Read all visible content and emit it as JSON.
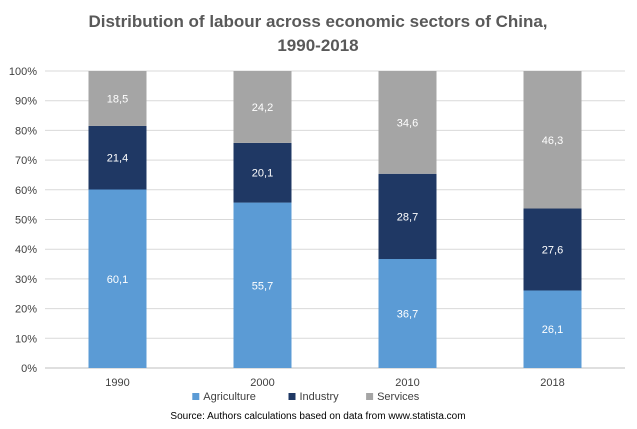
{
  "chart_data": {
    "type": "bar",
    "stacked": true,
    "title_line1": "Distribution of labour across economic sectors of China,",
    "title_line2": "1990-2018",
    "categories": [
      "1990",
      "2000",
      "2010",
      "2018"
    ],
    "series": [
      {
        "name": "Agriculture",
        "color": "#5b9bd5",
        "values": [
          60.1,
          55.7,
          36.7,
          26.1
        ],
        "labels": [
          "60,1",
          "55,7",
          "36,7",
          "26,1"
        ]
      },
      {
        "name": "Industry",
        "color": "#1f3864",
        "values": [
          21.4,
          20.1,
          28.7,
          27.6
        ],
        "labels": [
          "21,4",
          "20,1",
          "28,7",
          "27,6"
        ]
      },
      {
        "name": "Services",
        "color": "#a5a5a5",
        "values": [
          18.5,
          24.2,
          34.6,
          46.3
        ],
        "labels": [
          "18,5",
          "24,2",
          "34,6",
          "46,3"
        ]
      }
    ],
    "y_ticks": [
      "0%",
      "10%",
      "20%",
      "30%",
      "40%",
      "50%",
      "60%",
      "70%",
      "80%",
      "90%",
      "100%"
    ],
    "ylim": [
      0,
      100
    ],
    "grid": true,
    "legend_position": "bottom",
    "source": "Source: Authors calculations based on data from www.statista.com"
  }
}
